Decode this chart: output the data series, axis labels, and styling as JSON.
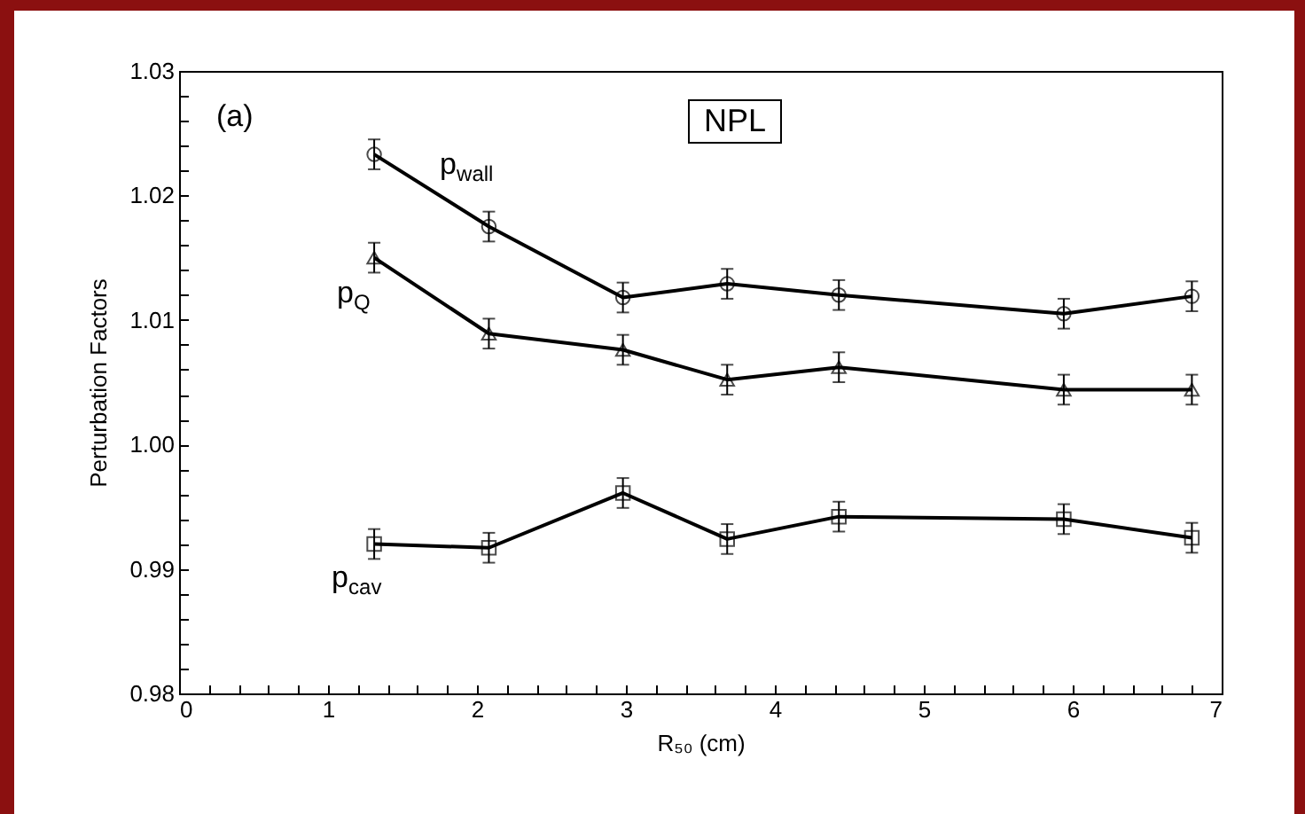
{
  "chart_data": {
    "type": "line",
    "xlabel": "R₅₀ (cm)",
    "ylabel": "Perturbation Factors",
    "annotations": [
      "(a)",
      "NPL"
    ],
    "xlim": [
      0,
      7
    ],
    "ylim": [
      0.98,
      1.03
    ],
    "xticks": [
      0,
      {
        "value": 0.2,
        "label": null
      },
      {
        "value": 0.4,
        "label": null
      },
      {
        "value": 0.6,
        "label": null
      },
      {
        "value": 0.8,
        "label": null
      },
      1,
      {
        "value": 1.2,
        "label": null
      },
      {
        "value": 1.4,
        "label": null
      },
      {
        "value": 1.6,
        "label": null
      },
      {
        "value": 1.8,
        "label": null
      },
      2,
      {
        "value": 2.2,
        "label": null
      },
      {
        "value": 2.4,
        "label": null
      },
      {
        "value": 2.6,
        "label": null
      },
      {
        "value": 2.8,
        "label": null
      },
      3,
      {
        "value": 3.2,
        "label": null
      },
      {
        "value": 3.4,
        "label": null
      },
      {
        "value": 3.6,
        "label": null
      },
      {
        "value": 3.8,
        "label": null
      },
      4,
      {
        "value": 4.2,
        "label": null
      },
      {
        "value": 4.4,
        "label": null
      },
      {
        "value": 4.6,
        "label": null
      },
      {
        "value": 4.8,
        "label": null
      },
      5,
      {
        "value": 5.2,
        "label": null
      },
      {
        "value": 5.4,
        "label": null
      },
      {
        "value": 5.6,
        "label": null
      },
      {
        "value": 5.8,
        "label": null
      },
      6,
      {
        "value": 6.2,
        "label": null
      },
      {
        "value": 6.4,
        "label": null
      },
      {
        "value": 6.6,
        "label": null
      },
      {
        "value": 6.8,
        "label": null
      },
      7
    ],
    "yticks": [
      {
        "value": 0.98,
        "label": "0.98"
      },
      {
        "value": 0.982,
        "label": null
      },
      {
        "value": 0.984,
        "label": null
      },
      {
        "value": 0.986,
        "label": null
      },
      {
        "value": 0.988,
        "label": null
      },
      {
        "value": 0.99,
        "label": "0.99"
      },
      {
        "value": 0.992,
        "label": null
      },
      {
        "value": 0.994,
        "label": null
      },
      {
        "value": 0.996,
        "label": null
      },
      {
        "value": 0.998,
        "label": null
      },
      {
        "value": 1.0,
        "label": "1.00"
      },
      {
        "value": 1.002,
        "label": null
      },
      {
        "value": 1.004,
        "label": null
      },
      {
        "value": 1.006,
        "label": null
      },
      {
        "value": 1.008,
        "label": null
      },
      {
        "value": 1.01,
        "label": "1.01"
      },
      {
        "value": 1.012,
        "label": null
      },
      {
        "value": 1.014,
        "label": null
      },
      {
        "value": 1.016,
        "label": null
      },
      {
        "value": 1.018,
        "label": null
      },
      {
        "value": 1.02,
        "label": "1.02"
      },
      {
        "value": 1.022,
        "label": null
      },
      {
        "value": 1.024,
        "label": null
      },
      {
        "value": 1.026,
        "label": null
      },
      {
        "value": 1.028,
        "label": null
      },
      {
        "value": 1.03,
        "label": "1.03"
      }
    ],
    "x": [
      1.31,
      2.08,
      2.98,
      3.68,
      4.43,
      5.94,
      6.8
    ],
    "series": [
      {
        "name": "p$_{wall}$",
        "color": "#000000",
        "marker": "circle",
        "values": [
          1.0233,
          1.0175,
          1.0118,
          1.0129,
          1.012,
          1.0105,
          1.0119
        ],
        "errors": [
          0.0012,
          0.0012,
          0.0012,
          0.0012,
          0.0012,
          0.0012,
          0.0012
        ]
      },
      {
        "name": "p$_{Q}$",
        "color": "#000000",
        "marker": "triangle",
        "values": [
          1.015,
          1.0089,
          1.0076,
          1.0052,
          1.0062,
          1.0044,
          1.0044
        ],
        "errors": [
          0.0012,
          0.0012,
          0.0012,
          0.0012,
          0.0012,
          0.0012,
          0.0012
        ]
      },
      {
        "name": "p$_{cav}$",
        "color": "#000000",
        "marker": "square",
        "values": [
          0.992,
          0.9917,
          0.9961,
          0.9924,
          0.9942,
          0.994,
          0.9925
        ],
        "errors": [
          0.0012,
          0.0012,
          0.0012,
          0.0012,
          0.0012,
          0.0012,
          0.0012
        ]
      }
    ]
  }
}
